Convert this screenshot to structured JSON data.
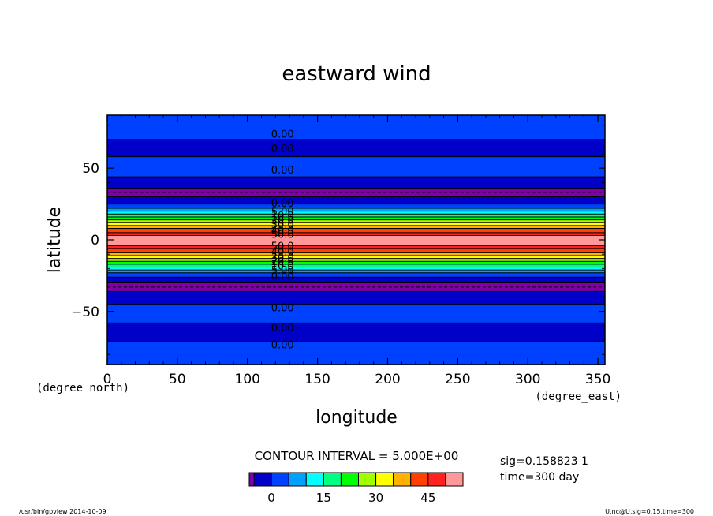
{
  "chart_data": {
    "type": "contour",
    "title": "eastward wind",
    "xlabel": "longitude",
    "ylabel": "latitude",
    "x_unit": "(degree_east)",
    "y_unit": "(degree_north)",
    "xlim": [
      0,
      355
    ],
    "ylim": [
      -87,
      87
    ],
    "x_ticks": [
      0,
      50,
      100,
      150,
      200,
      250,
      300,
      350
    ],
    "y_ticks": [
      50,
      0,
      -50
    ],
    "x_tick_labels": [
      "0",
      "50",
      "100",
      "150",
      "200",
      "250",
      "300",
      "350"
    ],
    "y_tick_labels": [
      "50",
      "0",
      "−50"
    ],
    "contour_interval_text": "CONTOUR INTERVAL = 5.000E+00",
    "info": [
      "sig=0.158823 1",
      "time=300 day"
    ],
    "colorbar": {
      "levels": [
        -5,
        0,
        5,
        10,
        15,
        20,
        25,
        30,
        35,
        40,
        45,
        50
      ],
      "colors": [
        "#8000a8",
        "#0000c8",
        "#0040ff",
        "#00a0ff",
        "#00ffff",
        "#00ff80",
        "#00ff00",
        "#a0ff00",
        "#ffff00",
        "#ffb000",
        "#ff4000",
        "#ff2020",
        "#ff9898"
      ],
      "tick_values": [
        0,
        15,
        30,
        45
      ],
      "tick_labels": [
        "0",
        "15",
        "30",
        "45"
      ]
    },
    "bands": [
      {
        "lat0": 70,
        "lat1": 87,
        "value_class": 2
      },
      {
        "lat0": 58,
        "lat1": 70,
        "value_class": 1
      },
      {
        "lat0": 44,
        "lat1": 58,
        "value_class": 2
      },
      {
        "lat0": 36,
        "lat1": 44,
        "value_class": 1
      },
      {
        "lat0": 30,
        "lat1": 36,
        "value_class": 0
      },
      {
        "lat0": 25,
        "lat1": 30,
        "value_class": 1
      },
      {
        "lat0": 22,
        "lat1": 25,
        "value_class": 2
      },
      {
        "lat0": 20,
        "lat1": 22,
        "value_class": 3
      },
      {
        "lat0": 18,
        "lat1": 20,
        "value_class": 4
      },
      {
        "lat0": 16,
        "lat1": 18,
        "value_class": 5
      },
      {
        "lat0": 14,
        "lat1": 16,
        "value_class": 6
      },
      {
        "lat0": 12,
        "lat1": 14,
        "value_class": 7
      },
      {
        "lat0": 10,
        "lat1": 12,
        "value_class": 8
      },
      {
        "lat0": 8,
        "lat1": 10,
        "value_class": 9
      },
      {
        "lat0": 5,
        "lat1": 8,
        "value_class": 10
      },
      {
        "lat0": 3,
        "lat1": 5,
        "value_class": 11
      },
      {
        "lat0": -4,
        "lat1": 3,
        "value_class": 12
      },
      {
        "lat0": -6,
        "lat1": -4,
        "value_class": 11
      },
      {
        "lat0": -9,
        "lat1": -6,
        "value_class": 10
      },
      {
        "lat0": -11,
        "lat1": -9,
        "value_class": 9
      },
      {
        "lat0": -13,
        "lat1": -11,
        "value_class": 8
      },
      {
        "lat0": -15,
        "lat1": -13,
        "value_class": 7
      },
      {
        "lat0": -17,
        "lat1": -15,
        "value_class": 6
      },
      {
        "lat0": -19,
        "lat1": -17,
        "value_class": 5
      },
      {
        "lat0": -21,
        "lat1": -19,
        "value_class": 4
      },
      {
        "lat0": -23,
        "lat1": -21,
        "value_class": 3
      },
      {
        "lat0": -26,
        "lat1": -23,
        "value_class": 2
      },
      {
        "lat0": -30,
        "lat1": -26,
        "value_class": 1
      },
      {
        "lat0": -36,
        "lat1": -30,
        "value_class": 0
      },
      {
        "lat0": -45,
        "lat1": -36,
        "value_class": 1
      },
      {
        "lat0": -58,
        "lat1": -45,
        "value_class": 2
      },
      {
        "lat0": -71,
        "lat1": -58,
        "value_class": 1
      },
      {
        "lat0": -87,
        "lat1": -71,
        "value_class": 2
      }
    ],
    "contour_lines_lat": [
      70,
      58,
      44,
      36,
      30,
      25,
      22,
      20,
      18,
      16,
      14,
      12,
      10,
      8,
      5,
      3,
      -4,
      -6,
      -9,
      -11,
      -13,
      -15,
      -17,
      -19,
      -21,
      -23,
      -26,
      -30,
      -36,
      -45,
      -58,
      -71
    ],
    "dashed_lines_lat": [
      33,
      -33
    ],
    "contour_labels": [
      {
        "lat": 74,
        "text": "0.00"
      },
      {
        "lat": 64,
        "text": "0.00"
      },
      {
        "lat": 49,
        "text": "0.00"
      },
      {
        "lat": 26,
        "text": "0.00"
      },
      {
        "lat": 20,
        "text": "5.00"
      },
      {
        "lat": 17,
        "text": "10.0"
      },
      {
        "lat": 14,
        "text": "20.0"
      },
      {
        "lat": 11,
        "text": "30.0"
      },
      {
        "lat": 7,
        "text": "40.0"
      },
      {
        "lat": 4,
        "text": "50.0"
      },
      {
        "lat": -4,
        "text": "50.0"
      },
      {
        "lat": -8,
        "text": "40.0"
      },
      {
        "lat": -12,
        "text": "30.0"
      },
      {
        "lat": -15,
        "text": "20.0"
      },
      {
        "lat": -18,
        "text": "10.0"
      },
      {
        "lat": -21,
        "text": "5.00"
      },
      {
        "lat": -25,
        "text": "0.00"
      },
      {
        "lat": -47,
        "text": "0.00"
      },
      {
        "lat": -61,
        "text": "0.00"
      },
      {
        "lat": -73,
        "text": "0.00"
      }
    ]
  },
  "footer": {
    "left": "/usr/bin/gpview   2014-10-09",
    "right": "U.nc@U,sig=0.15,time=300"
  }
}
